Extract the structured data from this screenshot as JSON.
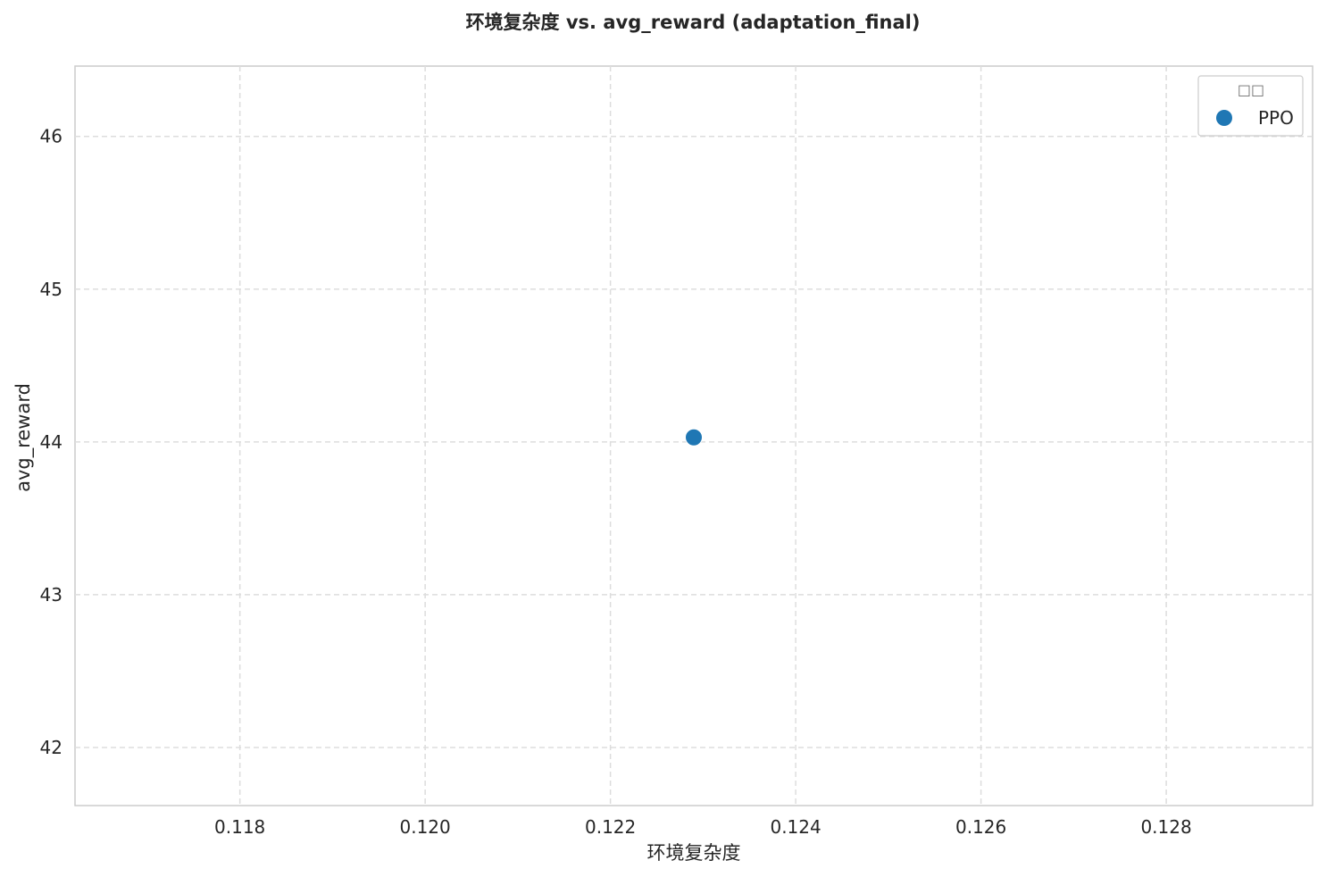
{
  "chart_data": {
    "type": "scatter",
    "title": "环境复杂度 vs. avg_reward (adaptation_final)",
    "xlabel": "环境复杂度",
    "ylabel": "avg_reward",
    "xlim": [
      0.11622,
      0.12958
    ],
    "ylim": [
      41.62,
      46.46
    ],
    "xticks": [
      0.118,
      0.12,
      0.122,
      0.124,
      0.126,
      0.128
    ],
    "xtick_labels": [
      "0.118",
      "0.120",
      "0.122",
      "0.124",
      "0.126",
      "0.128"
    ],
    "yticks": [
      42,
      43,
      44,
      45,
      46
    ],
    "ytick_labels": [
      "42",
      "43",
      "44",
      "45",
      "46"
    ],
    "grid": true,
    "legend": {
      "title": "□□",
      "placement": "top-right",
      "entries": [
        {
          "name": "PPO",
          "color": "#1f77b4",
          "marker": "circle"
        }
      ]
    },
    "series": [
      {
        "name": "PPO",
        "color": "#1f77b4",
        "points": [
          {
            "x": 0.1229,
            "y": 44.03
          }
        ]
      }
    ]
  }
}
